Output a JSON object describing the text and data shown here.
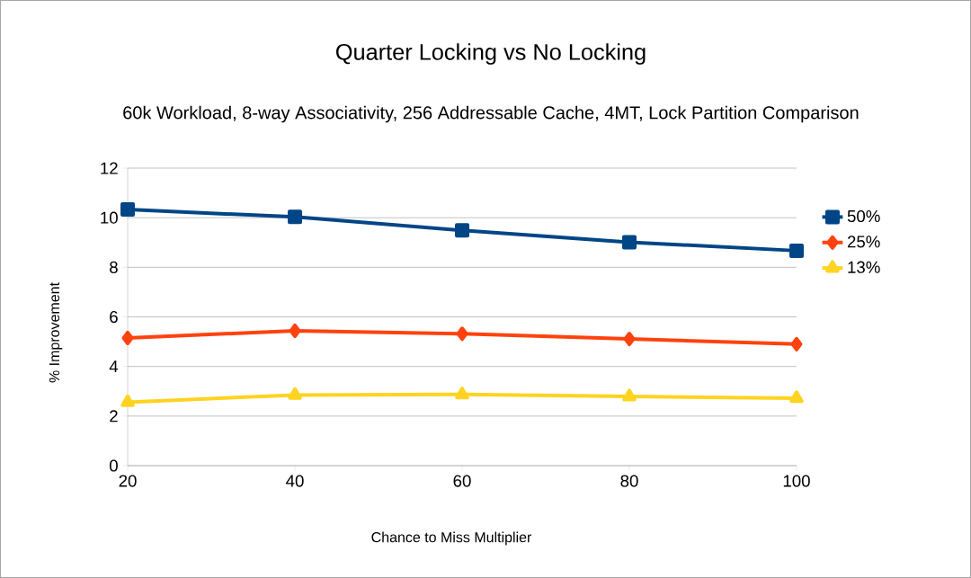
{
  "chart_data": {
    "type": "line",
    "title": "Quarter Locking vs No Locking",
    "subtitle": "60k Workload, 8-way Associativity, 256 Addressable Cache, 4MT, Lock Partition Comparison",
    "xlabel": "Chance to Miss Multiplier",
    "ylabel": "% Improvement",
    "x": [
      20,
      40,
      60,
      80,
      100
    ],
    "series": [
      {
        "name": "50%",
        "color": "#004586",
        "marker": "square",
        "values": [
          10.33,
          10.03,
          9.49,
          9.01,
          8.67
        ]
      },
      {
        "name": "25%",
        "color": "#ff420e",
        "marker": "diamond",
        "values": [
          5.15,
          5.44,
          5.32,
          5.11,
          4.9
        ]
      },
      {
        "name": "13%",
        "color": "#ffd320",
        "marker": "triangle",
        "values": [
          2.56,
          2.85,
          2.87,
          2.79,
          2.72
        ]
      }
    ],
    "xlim": [
      20,
      100
    ],
    "xticks": [
      20,
      40,
      60,
      80,
      100
    ],
    "ylim": [
      0,
      12
    ],
    "yticks": [
      0,
      2,
      4,
      6,
      8,
      10,
      12
    ],
    "grid": "y",
    "legend": "right",
    "line_style": "solid"
  }
}
